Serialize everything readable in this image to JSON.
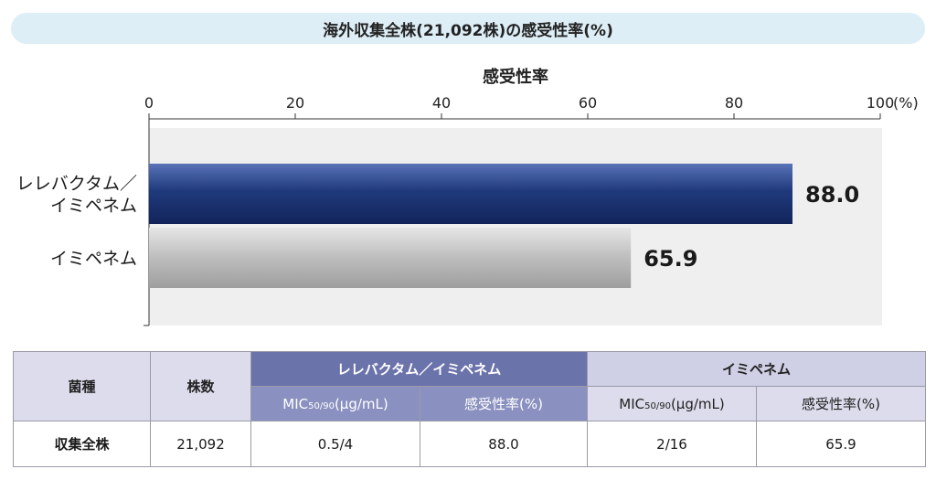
{
  "title": "海外収集全株(21,092株)の感受性率(%)",
  "chart_data": {
    "type": "bar",
    "orientation": "horizontal",
    "xlabel": "感受性率",
    "x_unit": "(%)",
    "xlim": [
      0,
      100
    ],
    "xticks": [
      0,
      20,
      40,
      60,
      80,
      100
    ],
    "grid": false,
    "categories": [
      "レレバクタム／イミペネム",
      "イミペネム"
    ],
    "category_lines": [
      [
        "レレバクタム／",
        "イミペネム"
      ],
      [
        "イミペネム"
      ]
    ],
    "values": [
      88.0,
      65.9
    ],
    "value_labels": [
      "88.0",
      "65.9"
    ],
    "colors": [
      "#1f3a7c",
      "#b0b0b0"
    ]
  },
  "table": {
    "col_species": "菌種",
    "col_count": "株数",
    "group_relebactam": "レレバクタム／イミペネム",
    "group_imipenem": "イミペネム",
    "mic_prefix": "MIC",
    "mic_sub": "50/90",
    "mic_unit": "(μg/mL)",
    "susceptibility": "感受性率(%)",
    "row": {
      "species": "収集全株",
      "count": "21,092",
      "rel_mic": "0.5/4",
      "rel_rate": "88.0",
      "imi_mic": "2/16",
      "imi_rate": "65.9"
    }
  }
}
